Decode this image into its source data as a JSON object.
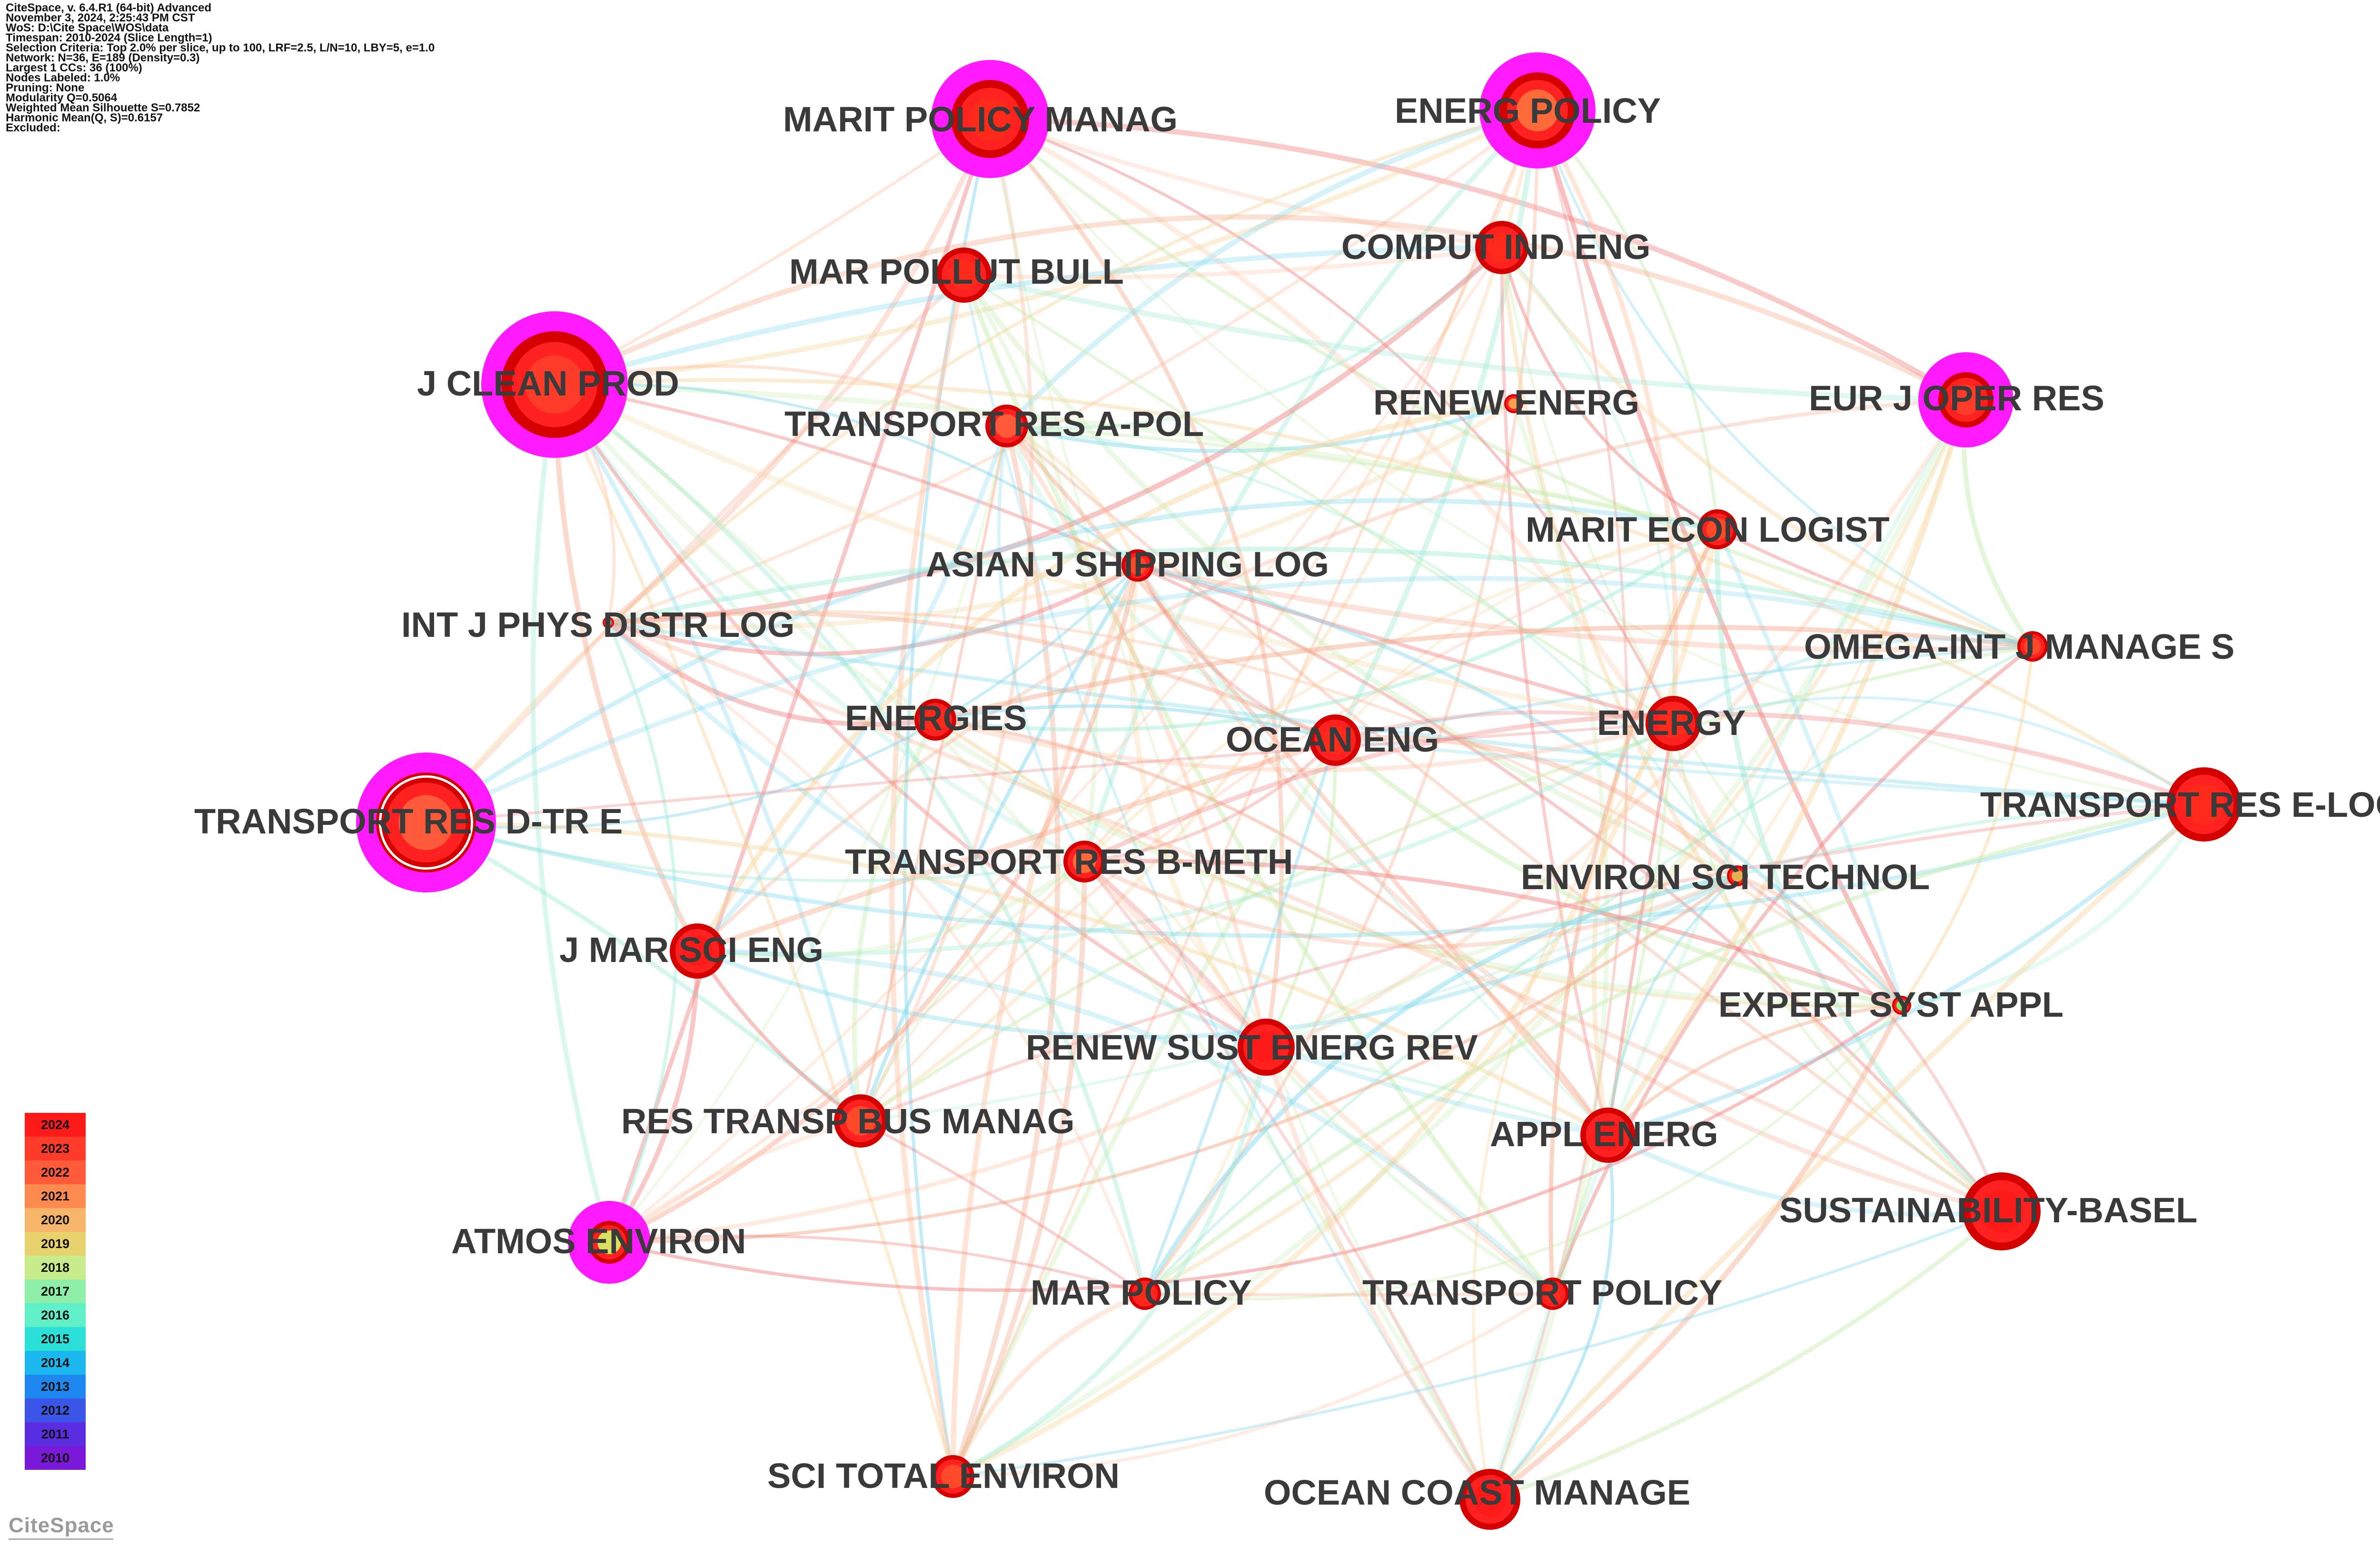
{
  "header": {
    "lines": [
      "CiteSpace, v. 6.4.R1 (64-bit) Advanced",
      "November 3, 2024, 2:25:43 PM CST",
      "WoS: D:\\Cite Space\\WOS\\data",
      "Timespan: 2010-2024 (Slice Length=1)",
      "Selection Criteria: Top 2.0% per slice, up to 100, LRF=2.5, L/N=10, LBY=5, e=1.0",
      "Network: N=36, E=189 (Density=0.3)",
      "Largest 1 CCs: 36 (100%)",
      "Nodes Labeled: 1.0%",
      "Pruning: None",
      "Modularity Q=0.5064",
      "Weighted Mean Silhouette S=0.7852",
      "Harmonic Mean(Q, S)=0.6157",
      "Excluded:"
    ]
  },
  "legend": {
    "years": [
      "2024",
      "2023",
      "2022",
      "2021",
      "2020",
      "2019",
      "2018",
      "2017",
      "2016",
      "2015",
      "2014",
      "2013",
      "2012",
      "2011",
      "2010"
    ],
    "colors": [
      "#ff1a1a",
      "#ff3b2a",
      "#ff5a3a",
      "#ff8a50",
      "#f7b56a",
      "#e8d26e",
      "#c8ec8c",
      "#8ef0a8",
      "#5ff0c8",
      "#2ae0d8",
      "#1ab8ee",
      "#1e88f0",
      "#3a55e8",
      "#5a2ee0",
      "#7a1ad8"
    ]
  },
  "brand": "CiteSpace",
  "network": {
    "nodes": [
      {
        "id": "marit-policy-manag",
        "label": "MARIT POLICY MANAG",
        "color": "#ff2a1a",
        "centrality": "high"
      },
      {
        "id": "energ-policy",
        "label": "ENERG POLICY",
        "color": "#ff6a3a",
        "centrality": "high"
      },
      {
        "id": "mar-pollut-bull",
        "label": "MAR POLLUT BULL",
        "color": "#ff2a1a",
        "centrality": "none"
      },
      {
        "id": "comput-ind-eng",
        "label": "COMPUT IND ENG",
        "color": "#ff2a1a",
        "centrality": "none"
      },
      {
        "id": "j-clean-prod",
        "label": "J CLEAN PROD",
        "color": "#ff3b2a",
        "centrality": "high"
      },
      {
        "id": "transport-res-a-pol",
        "label": "TRANSPORT RES A-POL",
        "color": "#ff5a3a",
        "centrality": "none"
      },
      {
        "id": "renew-energ",
        "label": "RENEW ENERG",
        "color": "#f7a050",
        "centrality": "none"
      },
      {
        "id": "eur-j-oper-res",
        "label": "EUR J OPER RES",
        "color": "#ff3b2a",
        "centrality": "high"
      },
      {
        "id": "marit-econ-logist",
        "label": "MARIT ECON LOGIST",
        "color": "#ff4a2a",
        "centrality": "none"
      },
      {
        "id": "asian-j-shipping-log",
        "label": "ASIAN J SHIPPING LOG",
        "color": "#ff4a2a",
        "centrality": "none"
      },
      {
        "id": "int-j-phys-distr-log",
        "label": "INT J PHYS DISTR LOG",
        "color": "#2ad8d0",
        "centrality": "none"
      },
      {
        "id": "omega-int-j-manage-s",
        "label": "OMEGA-INT J MANAGE S",
        "color": "#ff4a2a",
        "centrality": "none"
      },
      {
        "id": "energies",
        "label": "ENERGIES",
        "color": "#ff2a1a",
        "centrality": "none"
      },
      {
        "id": "ocean-eng",
        "label": "OCEAN ENG",
        "color": "#ff2a1a",
        "centrality": "none"
      },
      {
        "id": "energy",
        "label": "ENERGY",
        "color": "#ff2a1a",
        "centrality": "none"
      },
      {
        "id": "transport-res-d-tr-e",
        "label": "TRANSPORT RES D-TR E",
        "color": "#ff5a3a",
        "centrality": "high"
      },
      {
        "id": "transport-res-e-log",
        "label": "TRANSPORT RES E-LOG",
        "color": "#ff2a1a",
        "centrality": "none"
      },
      {
        "id": "transport-res-b-meth",
        "label": "TRANSPORT RES B-METH",
        "color": "#ff6a3a",
        "centrality": "none"
      },
      {
        "id": "environ-sci-technol",
        "label": "ENVIRON SCI TECHNOL",
        "color": "#e8b050",
        "centrality": "none"
      },
      {
        "id": "j-mar-sci-eng",
        "label": "J MAR SCI ENG",
        "color": "#ff1a1a",
        "centrality": "none"
      },
      {
        "id": "expert-syst-appl",
        "label": "EXPERT SYST APPL",
        "color": "#8ee870",
        "centrality": "none"
      },
      {
        "id": "renew-sust-energ-rev",
        "label": "RENEW SUST ENERG REV",
        "color": "#ff1a1a",
        "centrality": "none"
      },
      {
        "id": "res-transp-bus-manag",
        "label": "RES TRANSP BUS MANAG",
        "color": "#ff4a2a",
        "centrality": "none"
      },
      {
        "id": "appl-energ",
        "label": "APPL ENERG",
        "color": "#ff1a1a",
        "centrality": "none"
      },
      {
        "id": "sustainability-basel",
        "label": "SUSTAINABILITY-BASEL",
        "color": "#ff1a1a",
        "centrality": "none"
      },
      {
        "id": "atmos-environ",
        "label": "ATMOS ENVIRON",
        "color": "#d8e060",
        "centrality": "high"
      },
      {
        "id": "mar-policy",
        "label": "MAR POLICY",
        "color": "#ff2a1a",
        "centrality": "none"
      },
      {
        "id": "transport-policy",
        "label": "TRANSPORT POLICY",
        "color": "#ff2a1a",
        "centrality": "none"
      },
      {
        "id": "sci-total-environ",
        "label": "SCI TOTAL ENVIRON",
        "color": "#ff4a2a",
        "centrality": "none"
      },
      {
        "id": "ocean-coast-manage",
        "label": "OCEAN COAST MANAGE",
        "color": "#ff1a1a",
        "centrality": "none"
      }
    ],
    "edge_colors": [
      "#f08080",
      "#f5a88a",
      "#ffc0a0",
      "#f7d7a0",
      "#c8ecb0",
      "#a6ecd8",
      "#80d8ee"
    ]
  }
}
